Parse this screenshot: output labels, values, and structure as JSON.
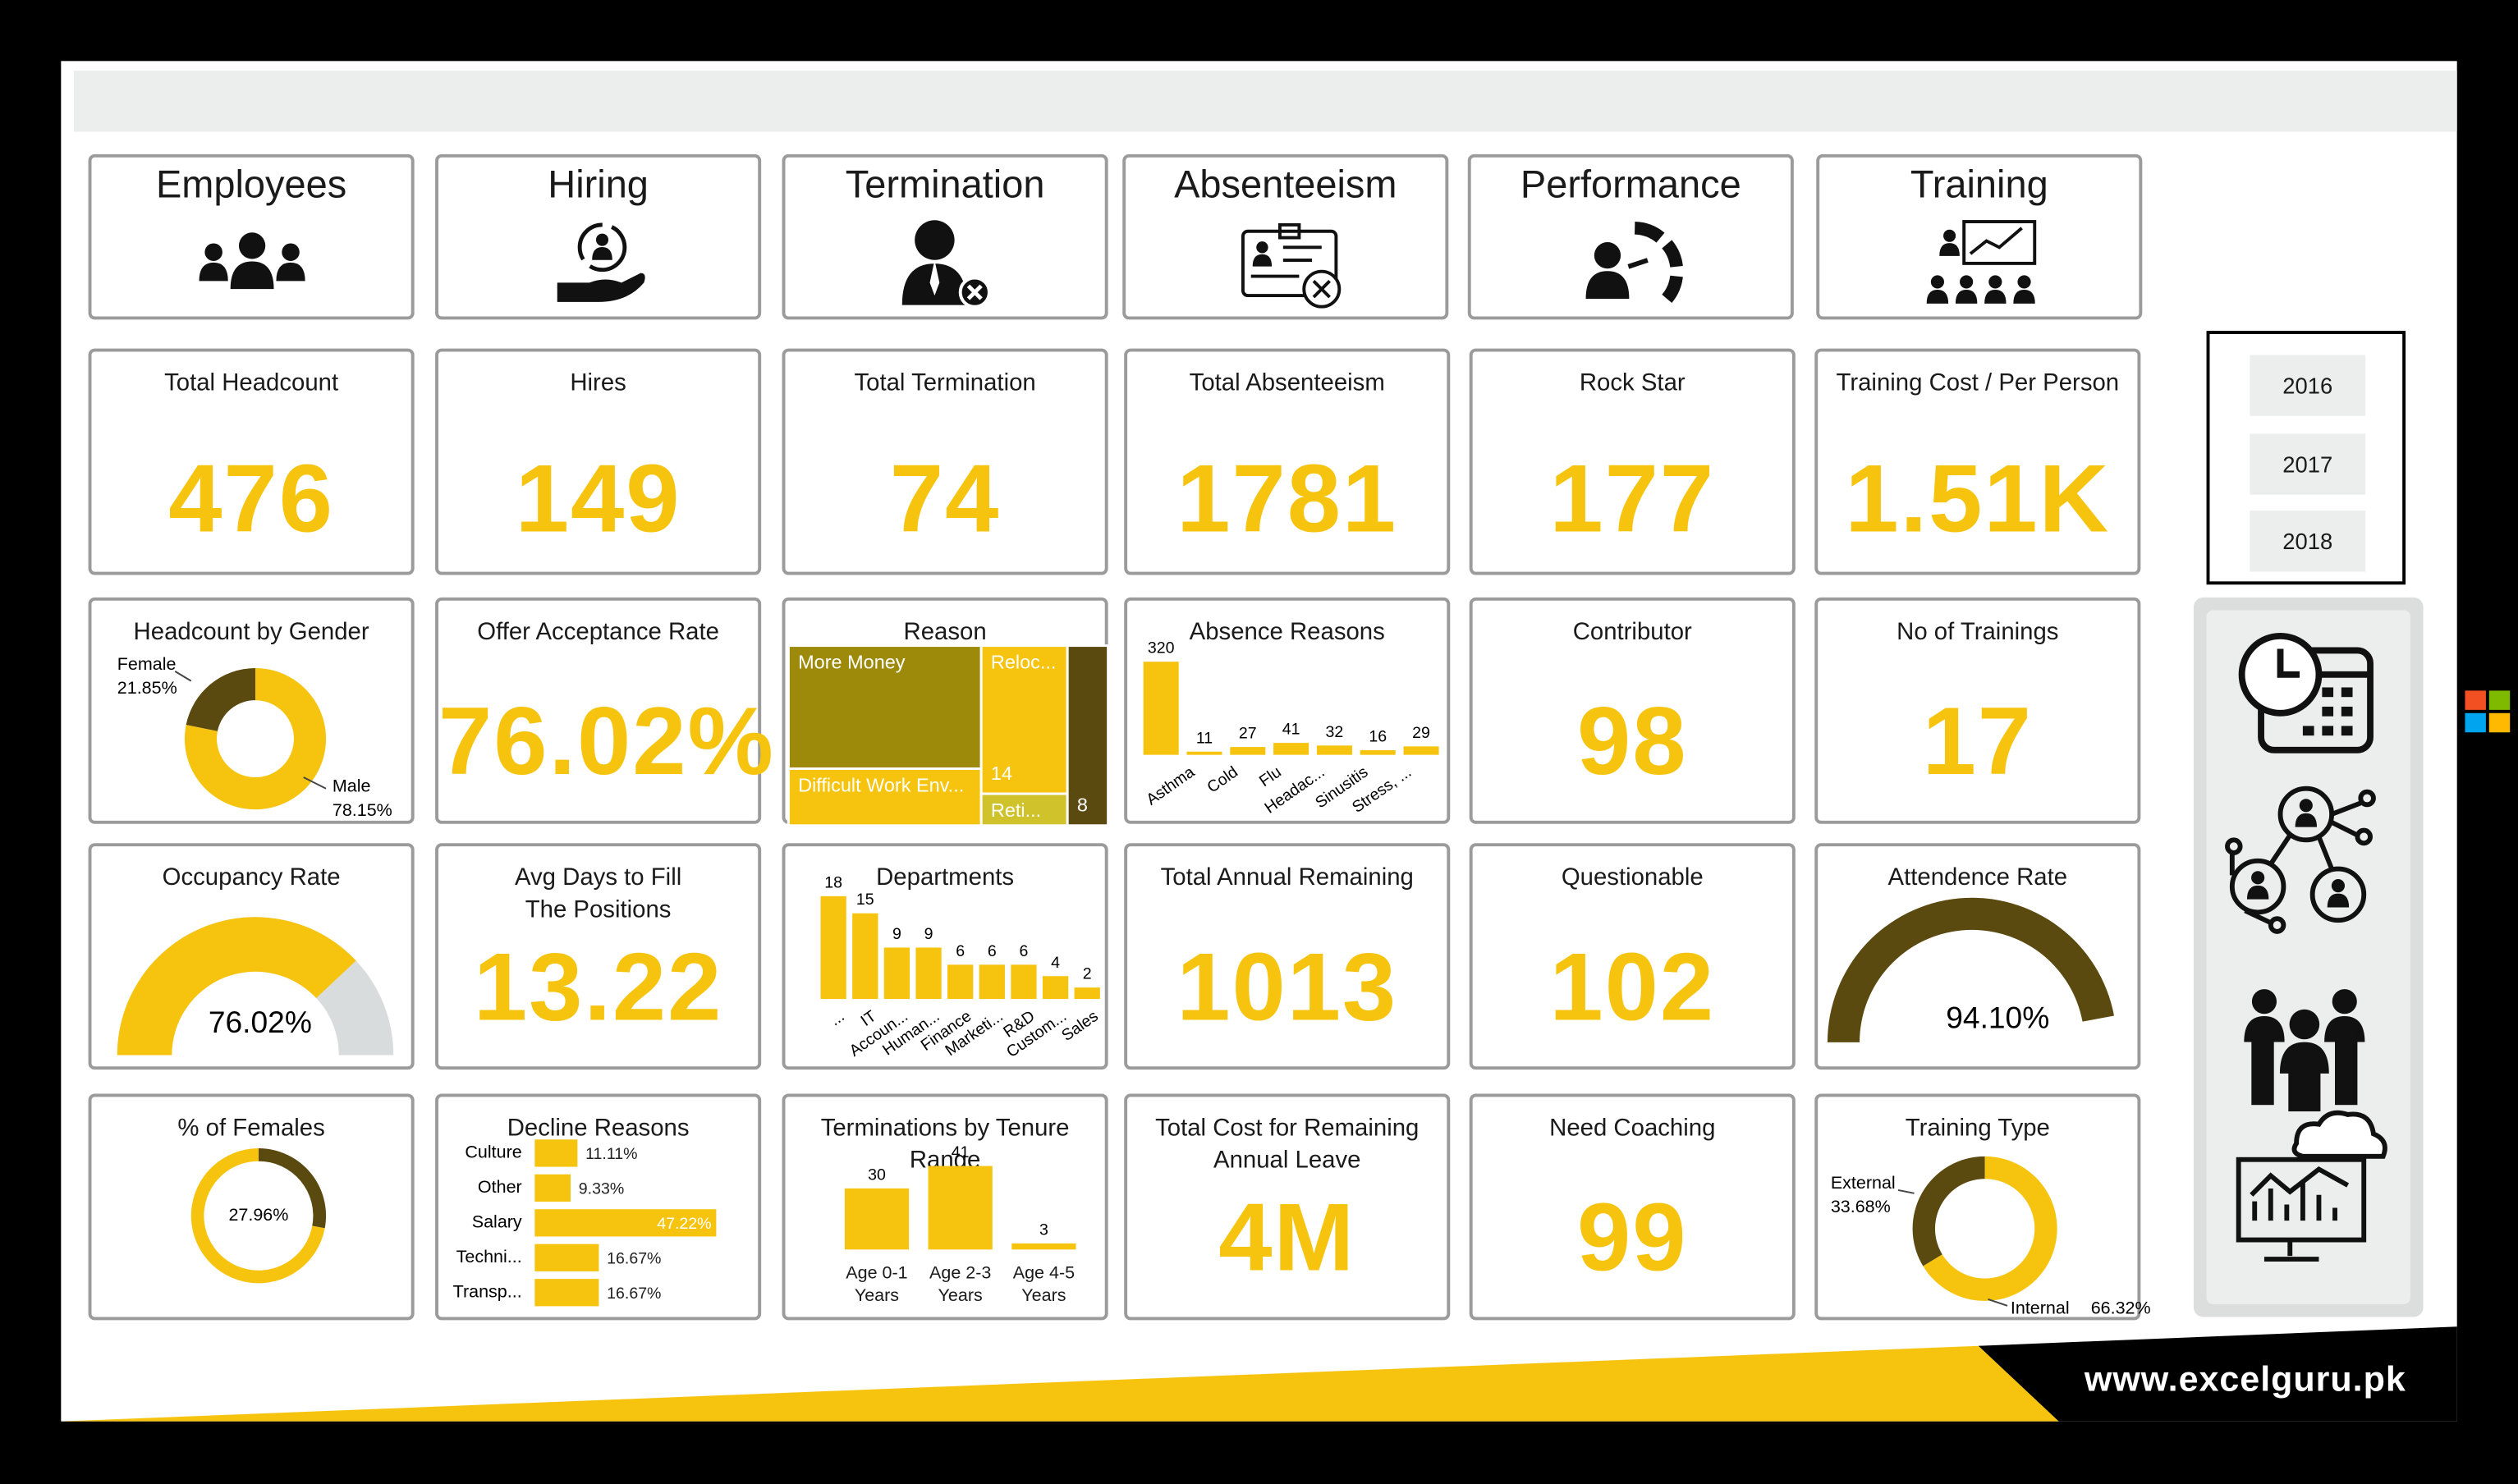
{
  "header": {
    "tabs": [
      "Employees",
      "Hiring",
      "Termination",
      "Absenteeism",
      "Performance",
      "Training"
    ]
  },
  "kpis": [
    {
      "title": "Total Headcount",
      "value": "476"
    },
    {
      "title": "Hires",
      "value": "149"
    },
    {
      "title": "Total Termination",
      "value": "74"
    },
    {
      "title": "Total Absenteeism",
      "value": "1781"
    },
    {
      "title": "Rock Star",
      "value": "177"
    },
    {
      "title": "Training Cost / Per Person",
      "value": "1.51K"
    },
    {
      "title": "Offer Acceptance Rate",
      "value": "76.02%"
    },
    {
      "title": "Contributor",
      "value": "98"
    },
    {
      "title": "No of Trainings",
      "value": "17"
    },
    {
      "title": "Avg Days to Fill The Positions",
      "value": "13.22"
    },
    {
      "title": "Total Annual Remaining",
      "value": "1013"
    },
    {
      "title": "Questionable",
      "value": "102"
    },
    {
      "title": "Total Cost for Remaining Annual Leave",
      "value": "4M"
    },
    {
      "title": "Need Coaching",
      "value": "99"
    }
  ],
  "chart_data": [
    {
      "type": "donut",
      "title": "Headcount by Gender",
      "labels": [
        "Female",
        "Male"
      ],
      "values": [
        21.85,
        78.15
      ],
      "value_labels": [
        "21.85%",
        "78.15%"
      ],
      "colors": [
        "#5b4a10",
        "#f6c40f"
      ],
      "ylim": [
        0,
        100
      ]
    },
    {
      "type": "treemap",
      "title": "Reason",
      "labels": [
        "More Money",
        "Difficult Work Env...",
        "Reloc...",
        "Reti...",
        null
      ],
      "values": [
        26,
        12,
        14,
        3,
        8
      ],
      "value_labels": [
        null,
        null,
        "14",
        null,
        "8"
      ],
      "colors": [
        "#9d8a0b",
        "#f6c40f",
        "#f6c40f",
        "#cfc22a",
        "#5b4a10"
      ]
    },
    {
      "type": "bar",
      "title": "Absence Reasons",
      "categories": [
        "Asthma",
        "Cold",
        "Flu",
        "Headac...",
        "Sinusitis",
        "Stress, ...",
        null
      ],
      "values": [
        320,
        11,
        27,
        41,
        32,
        16,
        29
      ],
      "color": "#f6c40f"
    },
    {
      "type": "gauge",
      "title": "Occupancy Rate",
      "value": 76.02,
      "value_label": "76.02%",
      "ylim": [
        0,
        100
      ],
      "color": "#f6c40f",
      "track_color": "#d9dcdc"
    },
    {
      "type": "bar",
      "title": "Departments",
      "categories": [
        "...",
        "IT",
        "Accoun...",
        "Human...",
        "Finance",
        "Marketi...",
        "R&D",
        "Custom...",
        "Sales"
      ],
      "values": [
        18,
        15,
        9,
        9,
        6,
        6,
        6,
        4,
        2
      ],
      "color": "#f6c40f"
    },
    {
      "type": "gauge",
      "title": "Attendence Rate",
      "value": 94.1,
      "value_label": "94.10%",
      "ylim": [
        0,
        100
      ],
      "color": "#5b4a10"
    },
    {
      "type": "donut",
      "title": "% of Females",
      "values": [
        27.96
      ],
      "value_labels": [
        "27.96%"
      ],
      "colors": [
        "#5b4a10"
      ],
      "track_color": "#f6c40f",
      "ylim": [
        0,
        100
      ],
      "clockwise": true
    },
    {
      "type": "hbar",
      "title": "Decline Reasons",
      "categories": [
        "Culture",
        "Other",
        "Salary",
        "Techni...",
        "Transp..."
      ],
      "values": [
        11.11,
        9.33,
        47.22,
        16.67,
        16.67
      ],
      "value_labels": [
        "11.11%",
        "9.33%",
        "47.22%",
        "16.67%",
        "16.67%"
      ],
      "color": "#f6c40f"
    },
    {
      "type": "bar",
      "title": "Terminations by Tenure Range",
      "categories": [
        "Age 0-1 Years",
        "Age 2-3 Years",
        "Age 4-5 Years"
      ],
      "values": [
        30,
        41,
        3
      ],
      "color": "#f6c40f"
    },
    {
      "type": "donut",
      "title": "Training Type",
      "labels": [
        "External",
        "Internal"
      ],
      "values": [
        33.68,
        66.32
      ],
      "value_labels": [
        "33.68%",
        "66.32%"
      ],
      "colors": [
        "#5b4a10",
        "#f6c40f"
      ],
      "ylim": [
        0,
        100
      ]
    }
  ],
  "slicer": {
    "years": [
      "2016",
      "2017",
      "2018"
    ]
  },
  "footer": {
    "url": "www.excelguru.pk"
  }
}
